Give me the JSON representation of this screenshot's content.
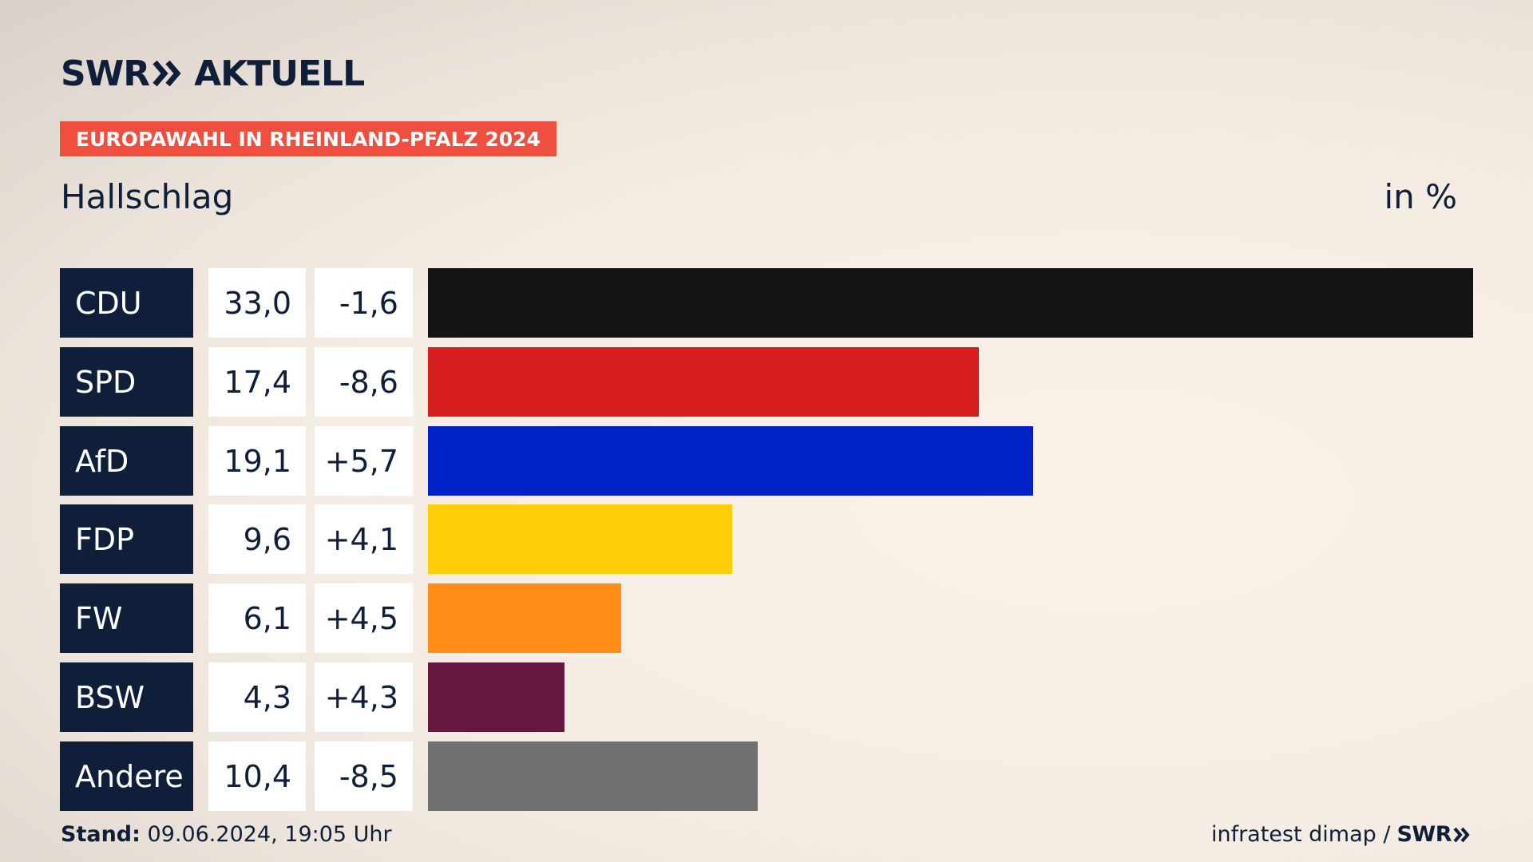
{
  "header": {
    "brand": "SWR",
    "brand_suffix": "AKTUELL",
    "badge": "EUROPAWAHL IN RHEINLAND-PFALZ 2024",
    "region": "Hallschlag",
    "unit": "in %"
  },
  "colors": {
    "navy": "#0f1f3a",
    "badge": "#f04e3e"
  },
  "chart_data": {
    "type": "bar",
    "orientation": "horizontal",
    "categories": [
      "CDU",
      "SPD",
      "AfD",
      "FDP",
      "FW",
      "BSW",
      "Andere"
    ],
    "values": [
      33.0,
      17.4,
      19.1,
      9.6,
      6.1,
      4.3,
      10.4
    ],
    "value_labels": [
      "33,0",
      "17,4",
      "19,1",
      "9,6",
      "6,1",
      "4,3",
      "10,4"
    ],
    "diff_labels": [
      "-1,6",
      "-8,6",
      "+5,7",
      "+4,1",
      "+4,5",
      "+4,3",
      "-8,5"
    ],
    "diffs": [
      -1.6,
      -8.6,
      5.7,
      4.1,
      4.5,
      4.3,
      -8.5
    ],
    "colors": [
      "#141414",
      "#d81f1f",
      "#0021c6",
      "#ffcd0a",
      "#ff8c17",
      "#67183e",
      "#707070"
    ],
    "xlim": [
      0,
      33.0
    ],
    "grid": false
  },
  "footer": {
    "stand_label": "Stand:",
    "stand_value": "09.06.2024, 19:05 Uhr",
    "source": "infratest dimap /",
    "source_brand": "SWR"
  }
}
